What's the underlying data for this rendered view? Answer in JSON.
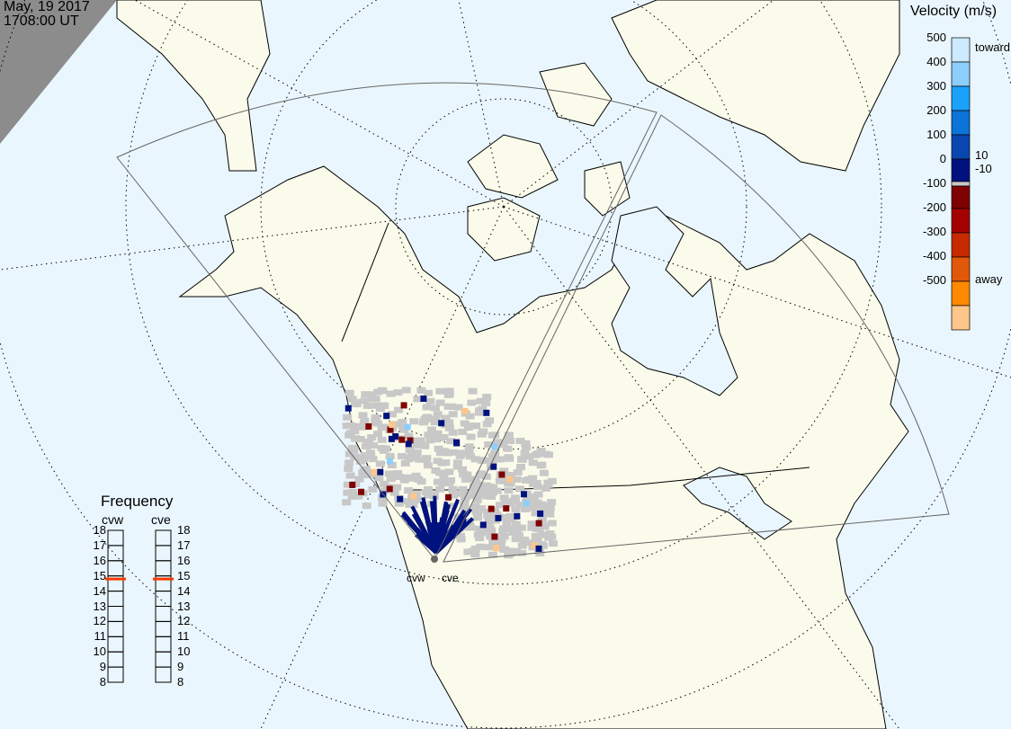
{
  "header": {
    "date": "May, 19 2017",
    "time": "1708:00 UT"
  },
  "velocity_scale": {
    "title": "Velocity (m/s)",
    "ticks": [
      "500",
      "400",
      "300",
      "200",
      "100",
      "0",
      "-100",
      "-200",
      "-300",
      "-400",
      "-500"
    ],
    "labels": {
      "toward": "toward",
      "away": "away",
      "pos_threshold": "10",
      "neg_threshold": "-10"
    },
    "colors": [
      "#cdeafe",
      "#8ccffc",
      "#1aa2fb",
      "#0a74d8",
      "#0a46b0",
      "#00127e",
      "#c8c8c8",
      "#7e0000",
      "#a50000",
      "#c82a00",
      "#e2580a",
      "#fd8a00",
      "#fdc68a"
    ]
  },
  "frequency": {
    "title": "Frequency",
    "stations": [
      {
        "name": "cvw",
        "value_mhz": 14.8
      },
      {
        "name": "cve",
        "value_mhz": 14.8
      }
    ],
    "ticks": [
      "18",
      "17",
      "16",
      "15",
      "14",
      "13",
      "12",
      "11",
      "10",
      "9",
      "8"
    ],
    "range_mhz": [
      8,
      18
    ],
    "marker_color": "#ff3a00"
  },
  "radars": [
    {
      "name": "cvw"
    },
    {
      "name": "cve"
    }
  ],
  "colors": {
    "ocean": "#eaf6fe",
    "land": "#fafbea",
    "night": "#8c8c8c",
    "ground_scatter": "#c8c8c8"
  }
}
